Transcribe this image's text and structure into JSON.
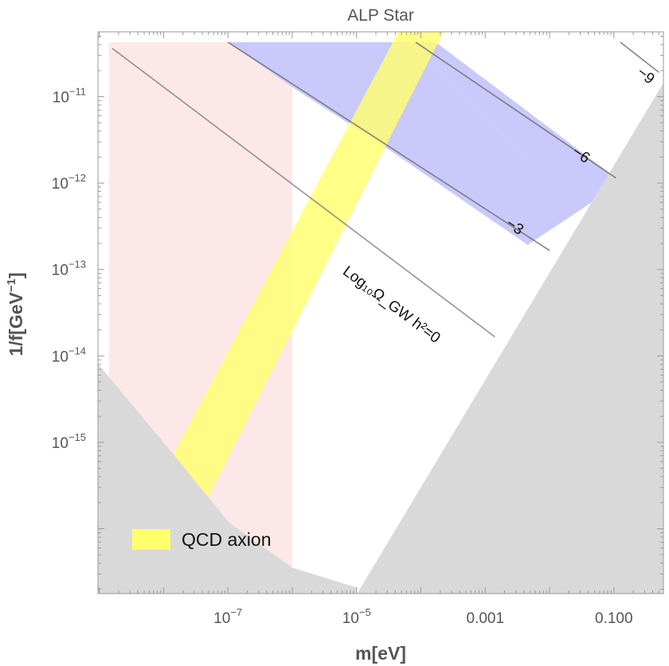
{
  "chart_data": {
    "type": "contour",
    "title": "ALP Star",
    "xlabel": "m[eV]",
    "ylabel": "1/f[GeV^-1]",
    "x_scale": "log",
    "y_scale": "log",
    "xlim_log10": [
      -9.02,
      -0.23
    ],
    "ylim_log10": [
      -16.75,
      -10.25
    ],
    "x_ticks": [
      {
        "log10": -7,
        "base": "10",
        "exp": "−7"
      },
      {
        "log10": -5,
        "base": "10",
        "exp": "−5"
      },
      {
        "log10": -3,
        "base": "0.001",
        "exp": ""
      },
      {
        "log10": -1,
        "base": "0.100",
        "exp": ""
      }
    ],
    "y_ticks": [
      {
        "log10": -11,
        "base": "10",
        "exp": "−11"
      },
      {
        "log10": -12,
        "base": "10",
        "exp": "−12"
      },
      {
        "log10": -13,
        "base": "10",
        "exp": "−13"
      },
      {
        "log10": -14,
        "base": "10",
        "exp": "−14"
      },
      {
        "log10": -15,
        "base": "10",
        "exp": "−15"
      }
    ],
    "ylabel_text": {
      "main": "1/f[GeV",
      "sup": "−1",
      "end": "]"
    },
    "colors": {
      "excluded": "#d9d9d9",
      "pink": "#fde8e8",
      "blue": "#c9c9fb",
      "qcd": "#ffff6e",
      "contour": "#707070",
      "grid_ticks": "#9a9a9a"
    },
    "regions": {
      "excluded_lower_left": [
        [
          -9.02,
          -14.09
        ],
        [
          -7.99,
          -15.01
        ],
        [
          -6.98,
          -15.93
        ],
        [
          -6.0,
          -16.45
        ],
        [
          -5.0,
          -16.68
        ],
        [
          -5.0,
          -16.75
        ],
        [
          -9.02,
          -16.75
        ]
      ],
      "excluded_right": [
        [
          -4.99,
          -16.75
        ],
        [
          -0.23,
          -10.84
        ],
        [
          -0.23,
          -16.75
        ]
      ],
      "excluded_corner": [
        [
          -5.92,
          -16.55
        ],
        [
          -5.12,
          -16.7
        ],
        [
          -5.04,
          -16.75
        ],
        [
          -6.0,
          -16.75
        ]
      ],
      "pink_band": [
        [
          -8.85,
          -10.37
        ],
        [
          -6.0,
          -10.37
        ],
        [
          -6.0,
          -16.45
        ],
        [
          -7.05,
          -15.95
        ],
        [
          -8.0,
          -15.0
        ],
        [
          -8.85,
          -14.25
        ]
      ],
      "blue_band": [
        [
          -7.0,
          -10.37
        ],
        [
          -4.08,
          -10.37
        ],
        [
          -2.33,
          -11.76
        ],
        [
          -2.33,
          -12.72
        ],
        [
          -4.6,
          -11.56
        ],
        [
          -6.0,
          -10.89
        ]
      ],
      "blue_band_extra": [
        [
          -4.08,
          -10.37
        ],
        [
          -3.77,
          -10.37
        ],
        [
          -0.97,
          -11.94
        ],
        [
          -1.3,
          -12.2
        ],
        [
          -2.35,
          -12.72
        ],
        [
          -2.33,
          -11.76
        ]
      ]
    },
    "qcd_band": {
      "label": "QCD axion",
      "lower_edge": [
        [
          -7.35,
          -15.7
        ],
        [
          -3.65,
          -10.25
        ]
      ],
      "upper_edge": [
        [
          -8.0,
          -15.35
        ],
        [
          -4.35,
          -10.25
        ]
      ],
      "corner_sliver": [
        [
          -9.02,
          -16.0
        ],
        [
          -8.6,
          -16.75
        ],
        [
          -9.02,
          -16.75
        ]
      ]
    },
    "contours": [
      {
        "label": "Log₁₀Ω_GW h²=0",
        "value": 0,
        "label_pos": [
          -4.5,
          -13.45
        ],
        "points": [
          [
            -8.8,
            -10.44
          ],
          [
            -2.85,
            -13.78
          ]
        ]
      },
      {
        "label": "−3",
        "value": -3,
        "label_pos": [
          -2.58,
          -12.55
        ],
        "points": [
          [
            -7.0,
            -10.37
          ],
          [
            -2.0,
            -12.78
          ]
        ]
      },
      {
        "label": "−6",
        "value": -6,
        "label_pos": [
          -1.55,
          -11.72
        ],
        "points": [
          [
            -4.08,
            -10.37
          ],
          [
            -0.97,
            -11.94
          ]
        ]
      },
      {
        "label": "−9",
        "value": -9,
        "label_pos": [
          -0.55,
          -10.8
        ],
        "points": [
          [
            -0.9,
            -10.37
          ],
          [
            -0.3,
            -10.72
          ]
        ]
      }
    ],
    "legend": {
      "position": "bottom-left",
      "entries": [
        {
          "label": "QCD axion",
          "color": "#ffff6e"
        }
      ]
    }
  }
}
